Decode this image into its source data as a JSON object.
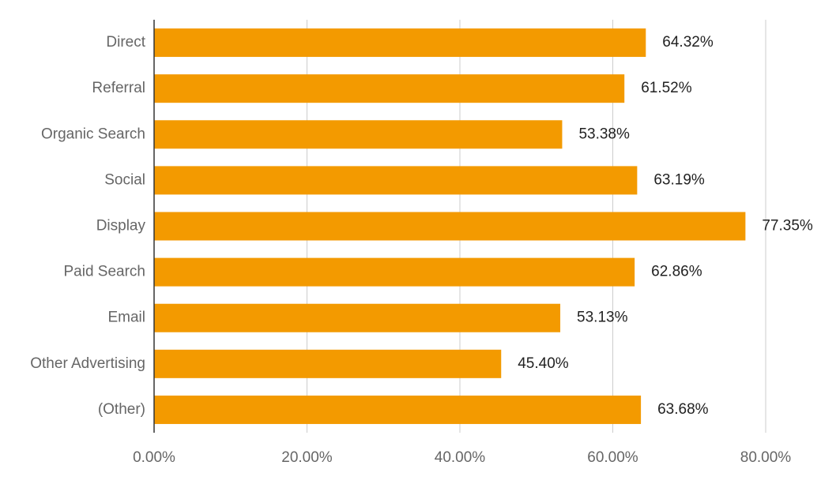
{
  "chart_data": {
    "type": "bar",
    "orientation": "horizontal",
    "categories": [
      "Direct",
      "Referral",
      "Organic Search",
      "Social",
      "Display",
      "Paid Search",
      "Email",
      "Other Advertising",
      "(Other)"
    ],
    "values": [
      64.32,
      61.52,
      53.38,
      63.19,
      77.35,
      62.86,
      53.13,
      45.4,
      63.68
    ],
    "data_labels": [
      "64.32%",
      "61.52%",
      "53.38%",
      "63.19%",
      "77.35%",
      "62.86%",
      "53.13%",
      "45.40%",
      "63.68%"
    ],
    "x_ticks": [
      0,
      20,
      40,
      60,
      80
    ],
    "x_tick_labels": [
      "0.00%",
      "20.00%",
      "40.00%",
      "60.00%",
      "80.00%"
    ],
    "xlim": [
      0,
      80
    ],
    "title": "",
    "xlabel": "",
    "ylabel": "",
    "grid": "vertical",
    "legend": "none",
    "bar_color": "#f39a00",
    "grid_color": "#cccccc",
    "axis_color": "#333333"
  }
}
